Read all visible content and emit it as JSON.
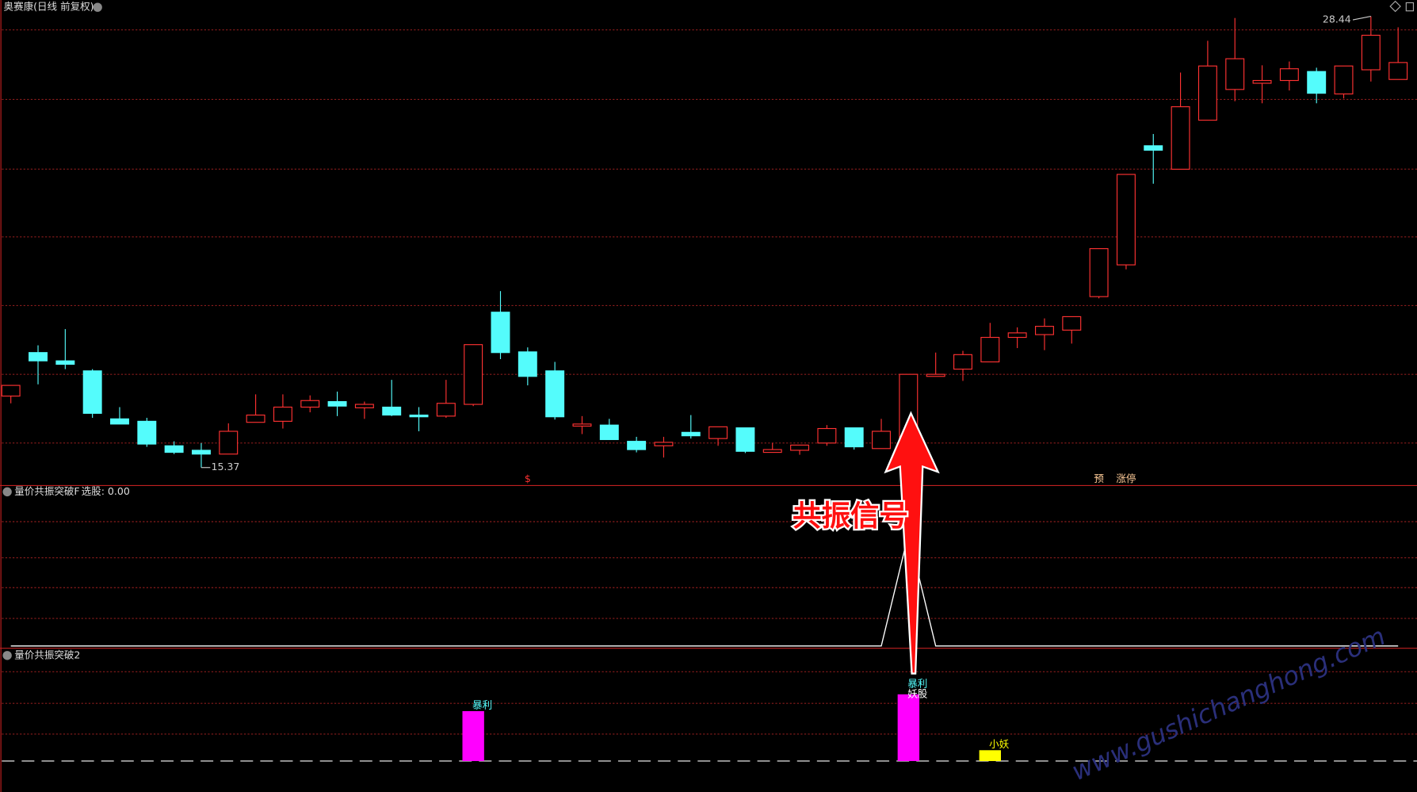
{
  "chart_data": [
    {
      "type": "candlestick",
      "title": "奥赛康(日线 前复权)",
      "open": [
        17.44,
        18.7,
        18.46,
        18.17,
        16.78,
        16.71,
        16.0,
        15.87,
        15.76,
        16.68,
        16.71,
        17.12,
        17.28,
        17.1,
        17.12,
        16.89,
        16.86,
        17.2,
        19.87,
        18.72,
        18.17,
        16.57,
        16.6,
        16.13,
        16.0,
        16.39,
        16.21,
        16.52,
        15.81,
        15.87,
        16.08,
        16.52,
        15.92,
        16.08,
        18.01,
        18.22,
        18.43,
        19.14,
        19.22,
        19.35,
        20.32,
        21.24,
        24.69,
        24.01,
        25.43,
        26.32,
        26.5,
        26.58,
        26.84,
        26.19,
        26.89,
        26.61
      ],
      "high": [
        17.75,
        18.91,
        19.38,
        18.22,
        17.12,
        16.81,
        16.13,
        16.08,
        16.65,
        17.49,
        17.49,
        17.46,
        17.57,
        17.28,
        17.91,
        17.12,
        17.91,
        18.93,
        20.48,
        18.85,
        18.43,
        16.86,
        16.78,
        16.26,
        16.26,
        16.89,
        16.55,
        16.52,
        16.08,
        16.02,
        16.6,
        16.52,
        16.78,
        18.07,
        18.7,
        18.75,
        19.56,
        19.43,
        19.69,
        19.74,
        21.71,
        23.86,
        25.03,
        26.81,
        27.73,
        28.39,
        27.02,
        27.13,
        26.95,
        27.0,
        28.44,
        28.12
      ],
      "low": [
        17.23,
        17.78,
        18.22,
        16.81,
        16.63,
        15.97,
        15.76,
        15.37,
        15.76,
        16.68,
        16.5,
        16.97,
        16.86,
        16.78,
        16.86,
        16.42,
        16.81,
        17.15,
        18.51,
        17.75,
        16.76,
        16.34,
        16.18,
        15.81,
        15.66,
        16.21,
        16.0,
        15.79,
        15.81,
        15.74,
        16.0,
        15.89,
        15.92,
        16.02,
        18.01,
        17.88,
        18.43,
        18.83,
        18.77,
        18.96,
        20.27,
        21.11,
        23.59,
        24.01,
        25.43,
        25.98,
        25.92,
        26.29,
        25.92,
        26.06,
        26.55,
        26.61
      ],
      "close": [
        17.75,
        18.46,
        18.36,
        16.94,
        16.63,
        16.05,
        15.81,
        15.76,
        16.42,
        16.89,
        17.12,
        17.31,
        17.15,
        17.2,
        16.89,
        16.84,
        17.23,
        18.93,
        18.7,
        18.01,
        16.84,
        16.63,
        16.18,
        15.89,
        16.1,
        16.29,
        16.55,
        15.84,
        15.89,
        16.02,
        16.5,
        15.97,
        16.42,
        18.07,
        18.07,
        18.64,
        19.14,
        19.27,
        19.46,
        19.74,
        21.71,
        23.86,
        24.56,
        25.82,
        27.0,
        27.21,
        26.58,
        26.92,
        26.21,
        27.0,
        27.89,
        27.1
      ],
      "up_color": "#ff3232",
      "down_color": "#54fcfc",
      "ylim": [
        14.85,
        28.91
      ],
      "annotations": [
        {
          "text": "$",
          "x": 19,
          "color": "#ff3232"
        },
        {
          "text": "预",
          "x": 40,
          "color": "#ffcc99"
        },
        {
          "text": "涨停",
          "x": 41,
          "color": "#ffcc99"
        }
      ]
    },
    {
      "type": "line",
      "title": "量价共振突破F",
      "legend_text": "选股: 0.00",
      "color": "#ffffff",
      "values": [
        0,
        0,
        0,
        0,
        0,
        0,
        0,
        0,
        0,
        0,
        0,
        0,
        0,
        0,
        0,
        0,
        0,
        0,
        0,
        0,
        0,
        0,
        0,
        0,
        0,
        0,
        0,
        0,
        0,
        0,
        0,
        0,
        0,
        1,
        0,
        0,
        0,
        0,
        0,
        0,
        0,
        0,
        0,
        0,
        0,
        0,
        0,
        0,
        0,
        0,
        0,
        0
      ],
      "ylim": [
        -0.02,
        1.43
      ]
    },
    {
      "type": "bar",
      "title": "量价共振突破2",
      "series": [
        {
          "color": "#ff00ff",
          "values": [
            null,
            null,
            null,
            null,
            null,
            null,
            null,
            null,
            null,
            null,
            null,
            null,
            null,
            null,
            null,
            null,
            null,
            0.92,
            null,
            null,
            null,
            null,
            null,
            null,
            null,
            null,
            null,
            null,
            null,
            null,
            null,
            null,
            null,
            1.23,
            null,
            null,
            null,
            null,
            null,
            null,
            null,
            null,
            null,
            null,
            null,
            null,
            null,
            null,
            null,
            null,
            null,
            null
          ]
        },
        {
          "color": "#ffff00",
          "values": [
            null,
            null,
            null,
            null,
            null,
            null,
            null,
            null,
            null,
            null,
            null,
            null,
            null,
            null,
            null,
            null,
            null,
            null,
            null,
            null,
            null,
            null,
            null,
            null,
            null,
            null,
            null,
            null,
            null,
            null,
            null,
            null,
            null,
            null,
            null,
            null,
            0.2,
            null,
            null,
            null,
            null,
            null,
            null,
            null,
            null,
            null,
            null,
            null,
            null,
            null,
            null,
            null
          ]
        }
      ],
      "ylim": [
        -0.57,
        2.08
      ],
      "annotations": [
        {
          "text": "暴利",
          "x": 17,
          "color": "#54fcfc"
        },
        {
          "text": "暴利",
          "x": 33,
          "color": "#54fcfc"
        },
        {
          "text": "妖股",
          "x": 33,
          "color": "#ffffff"
        },
        {
          "text": "小妖",
          "x": 36,
          "color": "#ffff00"
        }
      ]
    }
  ],
  "callout": "共振信号",
  "watermark": "www.gushichanghong.com"
}
